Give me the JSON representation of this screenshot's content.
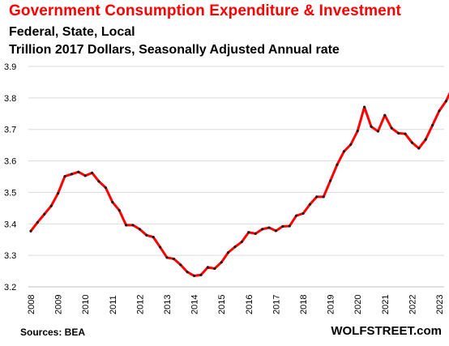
{
  "header": {
    "title": "Government Consumption  Expenditure & Investment",
    "subtitle_1": "Federal, State, Local",
    "subtitle_2": "Trillion 2017 Dollars, Seasonally Adjusted Annual rate"
  },
  "footer": {
    "source": "Sources: BEA",
    "brand": "WOLFSTREET.com"
  },
  "colors": {
    "line": "#ff0000",
    "marker": "#1a1a1a",
    "grid": "#d9d9d9",
    "title": "#ff0000"
  },
  "chart_data": {
    "type": "line",
    "title": "Government Consumption  Expenditure & Investment",
    "xlabel": "",
    "ylabel": "",
    "ylim": [
      3.2,
      3.9
    ],
    "yticks": [
      "3.2",
      "3.3",
      "3.4",
      "3.5",
      "3.6",
      "3.7",
      "3.8",
      "3.9"
    ],
    "xticks": [
      "2008",
      "2009",
      "2010",
      "2011",
      "2012",
      "2013",
      "2014",
      "2015",
      "2016",
      "2017",
      "2018",
      "2019",
      "2020",
      "2021",
      "2022",
      "2023"
    ],
    "grid": "horizontal",
    "legend": "none",
    "series": [
      {
        "x": [
          "2008 Q1",
          "2008 Q2",
          "2008 Q3",
          "2008 Q4",
          "2009 Q1",
          "2009 Q2",
          "2009 Q3",
          "2009 Q4",
          "2010 Q1",
          "2010 Q2",
          "2010 Q3",
          "2010 Q4",
          "2011 Q1",
          "2011 Q2",
          "2011 Q3",
          "2011 Q4",
          "2012 Q1",
          "2012 Q2",
          "2012 Q3",
          "2012 Q4",
          "2013 Q1",
          "2013 Q2",
          "2013 Q3",
          "2013 Q4",
          "2014 Q1",
          "2014 Q2",
          "2014 Q3",
          "2014 Q4",
          "2015 Q1",
          "2015 Q2",
          "2015 Q3",
          "2015 Q4",
          "2016 Q1",
          "2016 Q2",
          "2016 Q3",
          "2016 Q4",
          "2017 Q1",
          "2017 Q2",
          "2017 Q3",
          "2017 Q4",
          "2018 Q1",
          "2018 Q2",
          "2018 Q3",
          "2018 Q4",
          "2019 Q1",
          "2019 Q2",
          "2019 Q3",
          "2019 Q4",
          "2020 Q1",
          "2020 Q2",
          "2020 Q3",
          "2020 Q4",
          "2021 Q1",
          "2021 Q2",
          "2021 Q3",
          "2021 Q4",
          "2022 Q1",
          "2022 Q2",
          "2022 Q3",
          "2022 Q4",
          "2023 Q1",
          "2023 Q2",
          "2023 Q3"
        ],
        "values": [
          3.377,
          3.405,
          3.431,
          3.457,
          3.497,
          3.551,
          3.558,
          3.565,
          3.553,
          3.562,
          3.535,
          3.515,
          3.469,
          3.443,
          3.396,
          3.396,
          3.383,
          3.364,
          3.358,
          3.326,
          3.293,
          3.289,
          3.27,
          3.247,
          3.235,
          3.238,
          3.262,
          3.258,
          3.278,
          3.309,
          3.327,
          3.343,
          3.373,
          3.369,
          3.383,
          3.388,
          3.378,
          3.392,
          3.393,
          3.426,
          3.433,
          3.462,
          3.486,
          3.486,
          3.537,
          3.588,
          3.63,
          3.652,
          3.695,
          3.771,
          3.709,
          3.694,
          3.745,
          3.704,
          3.688,
          3.686,
          3.658,
          3.64,
          3.668,
          3.713,
          3.759,
          3.79,
          3.836
        ]
      }
    ]
  }
}
